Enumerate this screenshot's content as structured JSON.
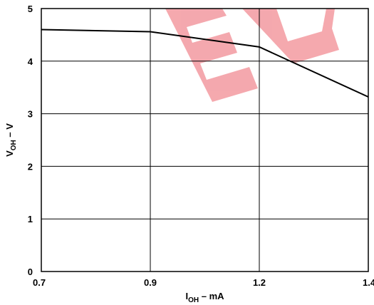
{
  "chart_data": {
    "type": "line",
    "title": "",
    "xlabel": {
      "main": "I",
      "sub": "OH",
      "suffix": " – mA"
    },
    "ylabel": {
      "main": "V",
      "sub": "OH",
      "suffix": " – V"
    },
    "xticks": [
      0.7,
      0.9,
      1.2,
      1.4
    ],
    "xtick_labels": [
      "0.7",
      "0.9",
      "1.2",
      "1.4"
    ],
    "yticks": [
      0,
      1,
      2,
      3,
      4,
      5
    ],
    "ytick_labels": [
      "0",
      "1",
      "2",
      "3",
      "4",
      "5"
    ],
    "xlim": [
      0.7,
      1.4
    ],
    "ylim": [
      0,
      5
    ],
    "x_scale": "piecewise-linear (ticks equally spaced)",
    "grid": true,
    "legend": "none",
    "series": [
      {
        "x": [
          0.7,
          0.9,
          1.2,
          1.4
        ],
        "y": [
          4.6,
          4.56,
          4.27,
          3.32
        ]
      }
    ],
    "watermark": {
      "text": "EL",
      "color": "#e8232b"
    },
    "colors": {
      "line": "#000000",
      "grid": "#000000",
      "background": "#ffffff"
    }
  }
}
